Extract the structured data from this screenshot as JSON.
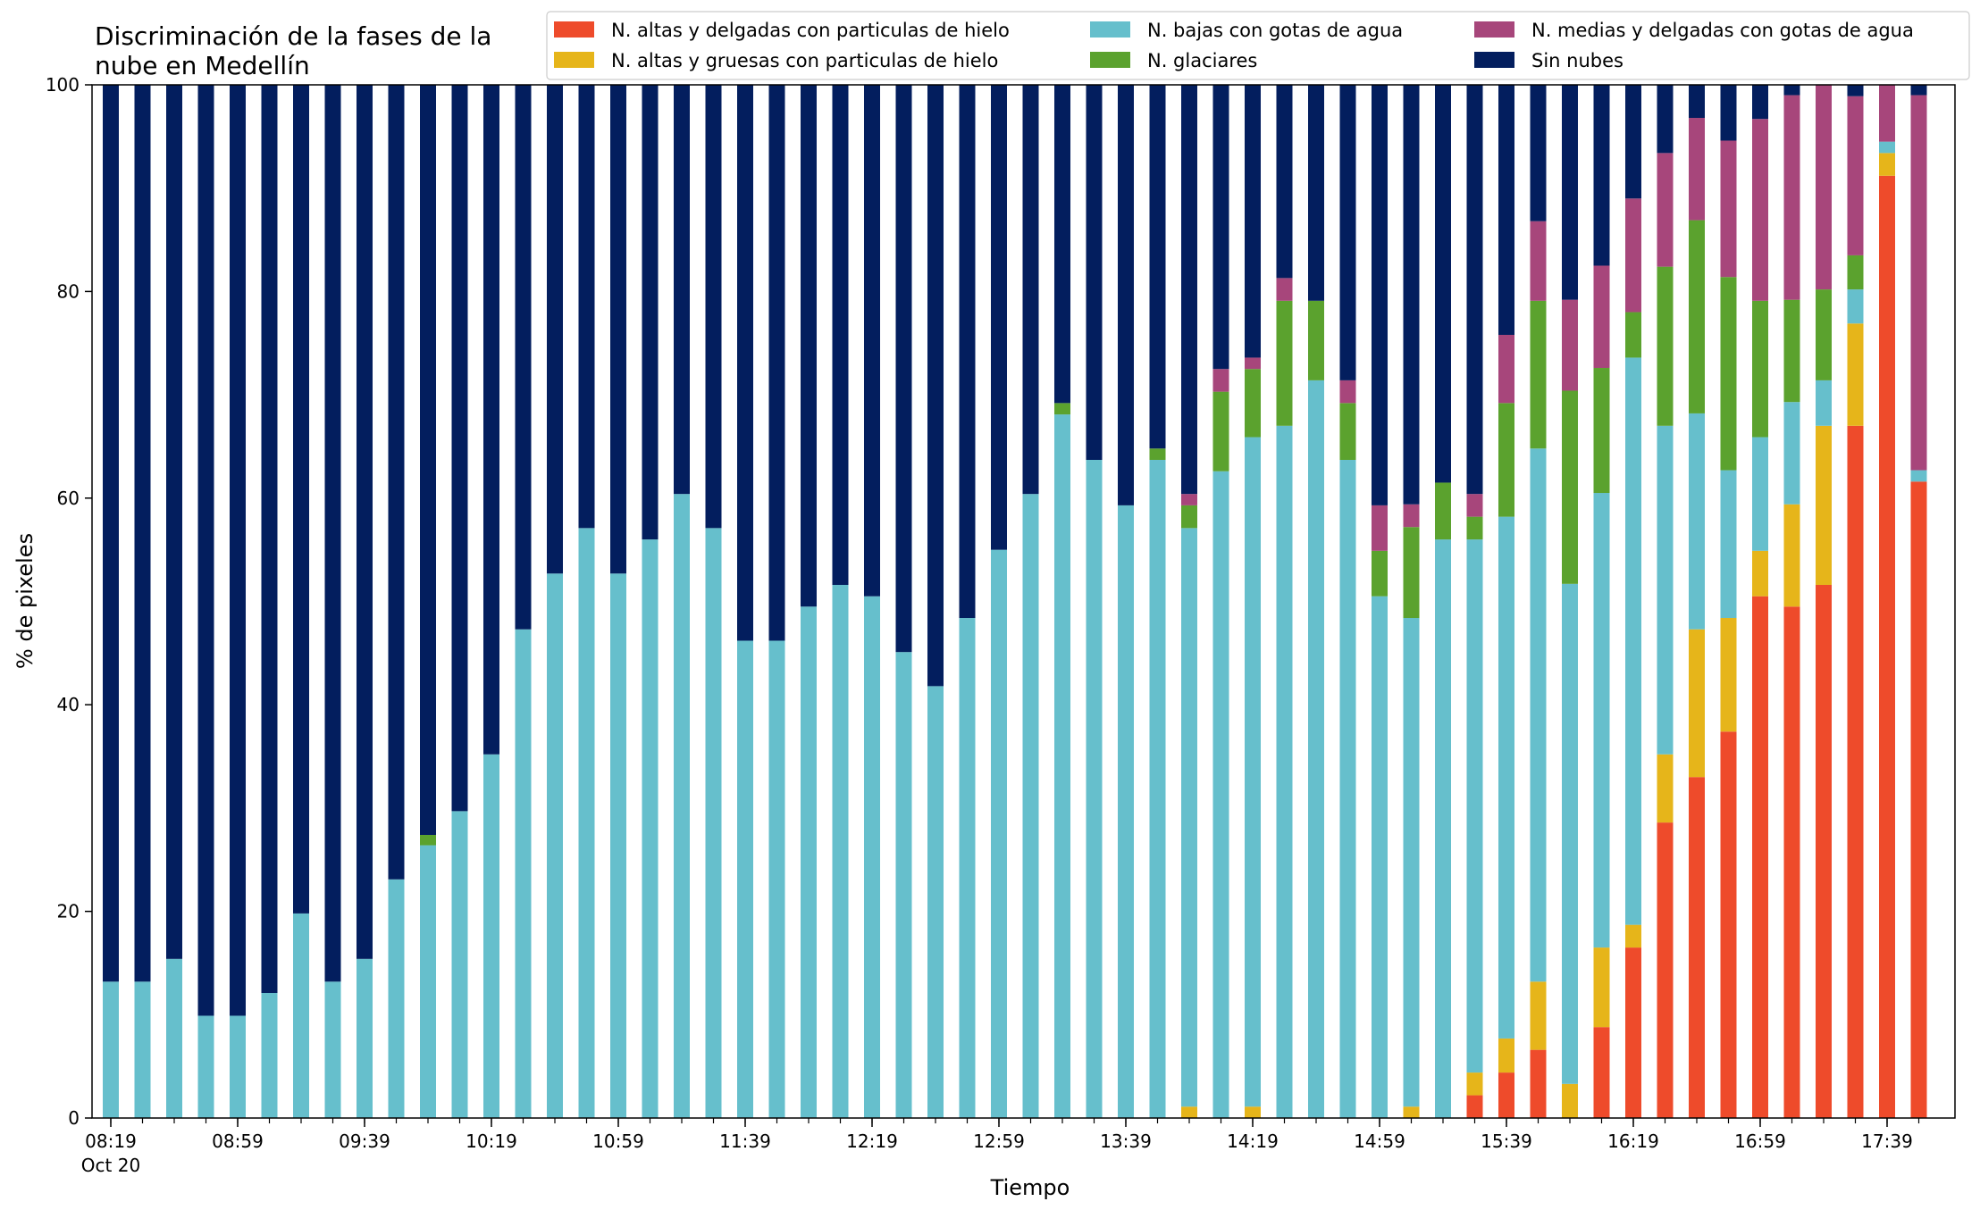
{
  "colors": {
    "altas_delgadas": "#ee4b2b",
    "altas_gruesas": "#e6b51a",
    "bajas_agua": "#66bfcc",
    "glaciares": "#5ba22e",
    "medias_agua": "#a7467b",
    "sin_nubes": "#031e5e"
  },
  "chart_data": {
    "type": "bar",
    "stacked": true,
    "title": "Discriminación de la fases de la\nnube en Medellín",
    "xlabel": "Tiempo",
    "ylabel": "% de pixeles",
    "ylim": [
      0,
      100
    ],
    "yticks": [
      0,
      20,
      40,
      60,
      80,
      100
    ],
    "grid": false,
    "legend_position": "top-right",
    "x_date_label": "Oct 20",
    "x_tick_labels": [
      "08:19",
      "08:59",
      "09:39",
      "10:19",
      "10:59",
      "11:39",
      "12:19",
      "12:59",
      "13:39",
      "14:19",
      "14:59",
      "15:39",
      "16:19",
      "16:59",
      "17:39"
    ],
    "categories": [
      "08:19",
      "08:29",
      "08:39",
      "08:49",
      "08:59",
      "09:09",
      "09:19",
      "09:29",
      "09:39",
      "09:49",
      "09:59",
      "10:09",
      "10:19",
      "10:29",
      "10:39",
      "10:49",
      "10:59",
      "11:09",
      "11:19",
      "11:29",
      "11:39",
      "11:49",
      "11:59",
      "12:09",
      "12:19",
      "12:29",
      "12:39",
      "12:49",
      "12:59",
      "13:09",
      "13:19",
      "13:29",
      "13:39",
      "13:49",
      "13:59",
      "14:09",
      "14:19",
      "14:29",
      "14:39",
      "14:49",
      "14:59",
      "15:09",
      "15:19",
      "15:29",
      "15:39",
      "15:49",
      "15:59",
      "16:09",
      "16:19",
      "16:29",
      "16:39",
      "16:49",
      "16:59",
      "17:09",
      "17:19",
      "17:29",
      "17:39",
      "17:49"
    ],
    "series": [
      {
        "name": "N. altas y delgadas con particulas de hielo",
        "color_key": "altas_delgadas",
        "values": [
          0,
          0,
          0,
          0,
          0,
          0,
          0,
          0,
          0,
          0,
          0,
          0,
          0,
          0,
          0,
          0,
          0,
          0,
          0,
          0,
          0,
          0,
          0,
          0,
          0,
          0,
          0,
          0,
          0,
          0,
          0,
          0,
          0,
          0,
          0,
          0,
          0,
          0,
          0,
          0,
          0,
          0,
          0,
          2.2,
          4.4,
          6.6,
          0,
          8.8,
          16.5,
          28.6,
          33.0,
          37.4,
          50.5,
          49.5,
          51.6,
          67.0,
          91.2,
          61.6
        ]
      },
      {
        "name": "N. altas y gruesas con particulas de hielo",
        "color_key": "altas_gruesas",
        "values": [
          0,
          0,
          0,
          0,
          0,
          0,
          0,
          0,
          0,
          0,
          0,
          0,
          0,
          0,
          0,
          0,
          0,
          0,
          0,
          0,
          0,
          0,
          0,
          0,
          0,
          0,
          0,
          0,
          0,
          0,
          0,
          0,
          0,
          0,
          1.1,
          0,
          1.1,
          0,
          0,
          0,
          0,
          1.1,
          0,
          2.2,
          3.3,
          6.6,
          3.3,
          7.7,
          2.2,
          6.6,
          14.3,
          11.0,
          4.4,
          9.9,
          15.4,
          9.9,
          2.2,
          0
        ]
      },
      {
        "name": "N. bajas con gotas de agua",
        "color_key": "bajas_agua",
        "values": [
          13.2,
          13.2,
          15.4,
          9.9,
          9.9,
          12.1,
          19.8,
          13.2,
          15.4,
          23.1,
          26.4,
          29.7,
          35.2,
          47.3,
          52.7,
          57.1,
          52.7,
          56.0,
          60.4,
          57.1,
          46.2,
          46.2,
          49.5,
          51.6,
          50.5,
          45.1,
          41.8,
          48.4,
          55.0,
          60.4,
          68.1,
          63.7,
          59.3,
          63.7,
          56.0,
          62.6,
          64.8,
          67.0,
          71.4,
          63.7,
          50.5,
          47.3,
          56.0,
          51.6,
          50.5,
          51.6,
          48.4,
          44.0,
          54.9,
          31.8,
          20.9,
          14.3,
          11.0,
          9.9,
          4.4,
          3.3,
          1.1,
          1.1
        ]
      },
      {
        "name": "N. glaciares",
        "color_key": "glaciares",
        "values": [
          0,
          0,
          0,
          0,
          0,
          0,
          0,
          0,
          0,
          0,
          1.0,
          0,
          0,
          0,
          0,
          0,
          0,
          0,
          0,
          0,
          0,
          0,
          0,
          0,
          0,
          0,
          0,
          0,
          0,
          0,
          1.1,
          0,
          0,
          1.1,
          2.2,
          7.7,
          6.6,
          12.1,
          7.7,
          5.5,
          4.4,
          8.8,
          5.5,
          2.2,
          11.0,
          14.3,
          18.7,
          12.1,
          4.4,
          15.4,
          18.7,
          18.7,
          13.2,
          9.9,
          8.8,
          3.3,
          0,
          0
        ]
      },
      {
        "name": "N. medias y delgadas con gotas de agua",
        "color_key": "medias_agua",
        "values": [
          0,
          0,
          0,
          0,
          0,
          0,
          0,
          0,
          0,
          0,
          0,
          0,
          0,
          0,
          0,
          0,
          0,
          0,
          0,
          0,
          0,
          0,
          0,
          0,
          0,
          0,
          0,
          0,
          0,
          0,
          0,
          0,
          0,
          0,
          1.1,
          2.2,
          1.1,
          2.2,
          0,
          2.2,
          4.4,
          2.2,
          0,
          2.2,
          6.6,
          7.7,
          8.8,
          9.9,
          11.0,
          11.0,
          9.9,
          13.2,
          17.6,
          19.8,
          19.8,
          15.4,
          5.5,
          36.3
        ]
      },
      {
        "name": "Sin nubes",
        "color_key": "sin_nubes",
        "values": [
          86.8,
          86.8,
          84.6,
          90.1,
          90.1,
          87.9,
          80.2,
          86.8,
          84.6,
          76.9,
          72.6,
          70.3,
          64.8,
          52.7,
          47.3,
          42.9,
          47.3,
          44.0,
          39.6,
          42.9,
          53.8,
          53.8,
          50.5,
          48.4,
          49.5,
          54.9,
          58.2,
          51.6,
          45.0,
          39.6,
          30.8,
          36.3,
          40.7,
          35.2,
          39.6,
          27.5,
          26.4,
          18.7,
          20.9,
          28.6,
          40.7,
          40.7,
          38.5,
          39.6,
          24.2,
          13.2,
          20.8,
          17.6,
          11.0,
          6.6,
          3.3,
          5.5,
          3.3,
          1.1,
          0,
          1.1,
          0,
          1.1
        ]
      }
    ]
  }
}
